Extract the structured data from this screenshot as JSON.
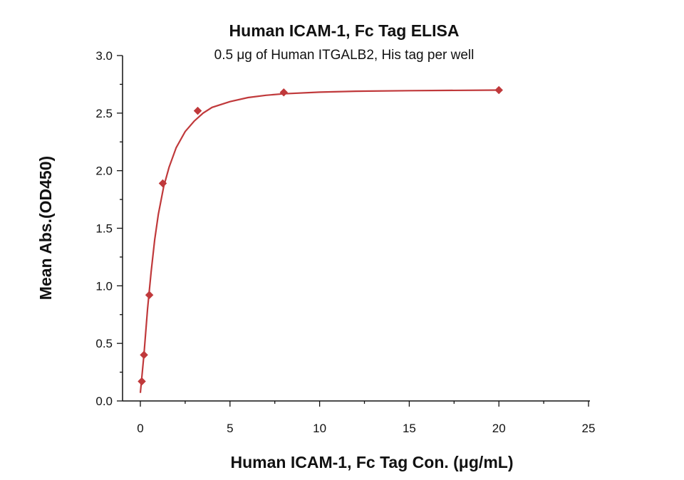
{
  "chart_data": {
    "type": "scatter",
    "title": "Human ICAM-1, Fc Tag ELISA",
    "subtitle": "0.5 μg of Human ITGALB2, His tag per well",
    "xlabel": "Human ICAM-1, Fc Tag Con. (μg/mL)",
    "ylabel": "Mean Abs.(OD450)",
    "xlim": [
      0,
      25
    ],
    "ylim": [
      0,
      3.0
    ],
    "xticks": [
      "0",
      "5",
      "10",
      "15",
      "20",
      "25"
    ],
    "yticks": [
      "0.0",
      "0.5",
      "1.0",
      "1.5",
      "2.0",
      "2.5",
      "3.0"
    ],
    "grid": false,
    "colors": {
      "series": "#c0393b",
      "axis": "#111111"
    },
    "series": [
      {
        "points": [
          {
            "x": 0.08,
            "y": 0.17
          },
          {
            "x": 0.2,
            "y": 0.4
          },
          {
            "x": 0.5,
            "y": 0.92
          },
          {
            "x": 1.25,
            "y": 1.89
          },
          {
            "x": 3.2,
            "y": 2.52
          },
          {
            "x": 8.0,
            "y": 2.68
          },
          {
            "x": 20.0,
            "y": 2.7
          }
        ],
        "marker": "diamond"
      }
    ],
    "fit_curve": [
      {
        "x": 0.0,
        "y": 0.07
      },
      {
        "x": 0.2,
        "y": 0.4
      },
      {
        "x": 0.4,
        "y": 0.8
      },
      {
        "x": 0.6,
        "y": 1.12
      },
      {
        "x": 0.8,
        "y": 1.4
      },
      {
        "x": 1.0,
        "y": 1.62
      },
      {
        "x": 1.3,
        "y": 1.86
      },
      {
        "x": 1.6,
        "y": 2.03
      },
      {
        "x": 2.0,
        "y": 2.2
      },
      {
        "x": 2.5,
        "y": 2.34
      },
      {
        "x": 3.0,
        "y": 2.43
      },
      {
        "x": 3.5,
        "y": 2.5
      },
      {
        "x": 4.0,
        "y": 2.55
      },
      {
        "x": 5.0,
        "y": 2.6
      },
      {
        "x": 6.0,
        "y": 2.635
      },
      {
        "x": 7.0,
        "y": 2.655
      },
      {
        "x": 8.0,
        "y": 2.668
      },
      {
        "x": 10.0,
        "y": 2.682
      },
      {
        "x": 12.0,
        "y": 2.69
      },
      {
        "x": 15.0,
        "y": 2.695
      },
      {
        "x": 20.0,
        "y": 2.7
      }
    ]
  }
}
